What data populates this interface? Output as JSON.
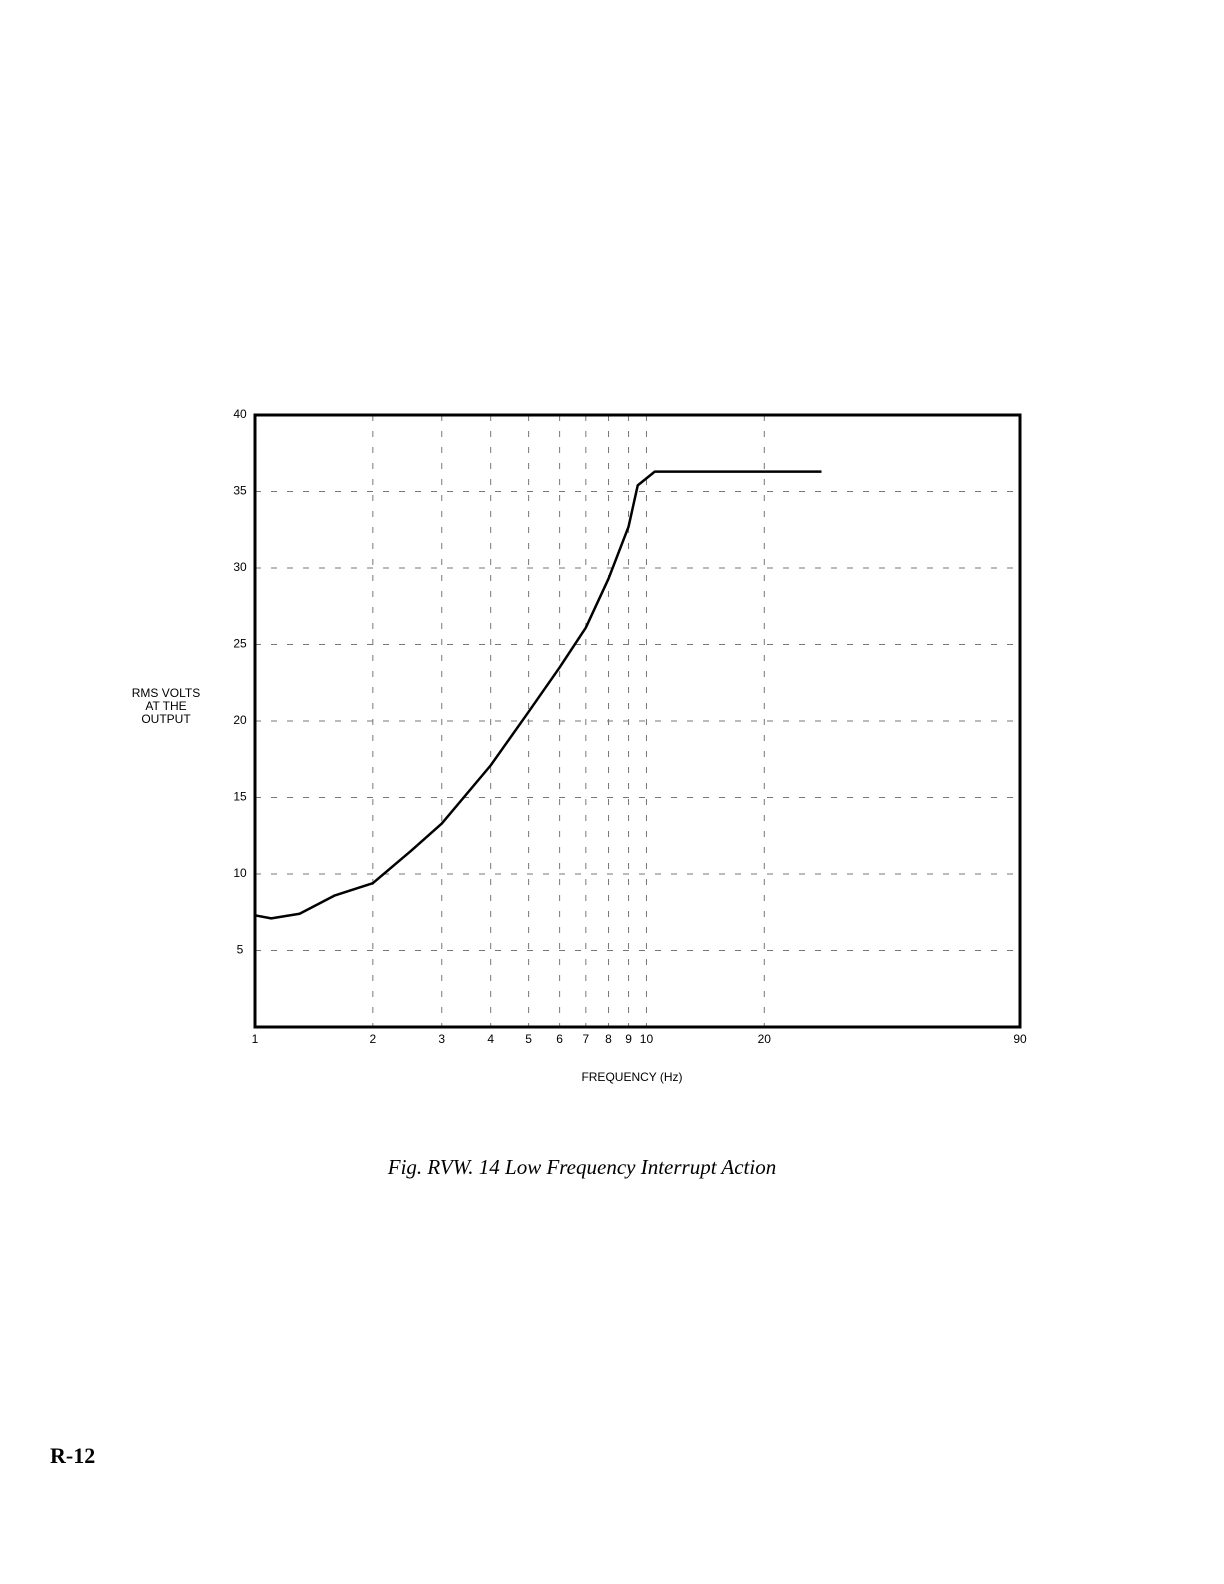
{
  "chart_data": {
    "type": "line",
    "scale_x": "log",
    "ylabel": [
      "RMS VOLTS",
      "AT THE",
      "OUTPUT"
    ],
    "xlabel": "FREQUENCY (Hz)",
    "caption": "Fig. RVW. 14  Low Frequency Interrupt Action",
    "x": [
      1,
      1.1,
      1.3,
      1.6,
      2,
      2.5,
      3,
      4,
      5,
      6,
      7,
      8,
      9,
      9.5,
      10.5,
      20,
      28
    ],
    "series": [
      {
        "color": "#000000",
        "values": [
          7.3,
          7.1,
          7.4,
          8.6,
          9.4,
          11.5,
          13.3,
          17.1,
          20.6,
          23.5,
          26.1,
          29.3,
          32.7,
          35.4,
          36.3,
          36.3,
          36.3
        ]
      }
    ],
    "xlim": [
      1,
      90
    ],
    "xticks": [
      1,
      2,
      3,
      4,
      5,
      6,
      7,
      8,
      9,
      10,
      20,
      90
    ],
    "ylim": [
      0,
      40
    ],
    "yticks": [
      5,
      10,
      15,
      20,
      25,
      30,
      35,
      40
    ],
    "grid": true
  },
  "page_label": "R-12"
}
